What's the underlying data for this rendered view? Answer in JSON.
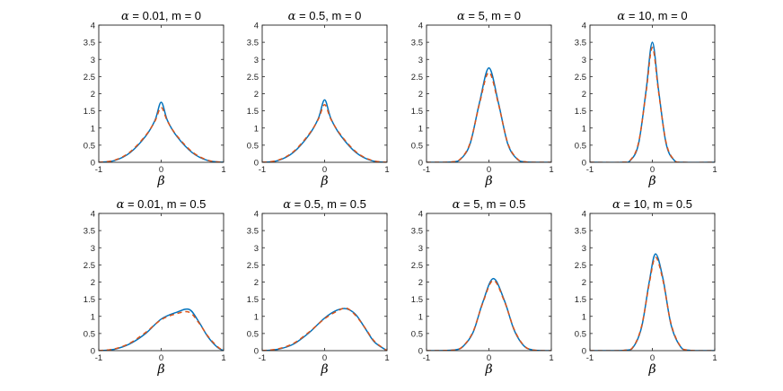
{
  "chart_data": [
    {
      "type": "line",
      "title": "α = 0.01, m = 0",
      "title_greek": "α",
      "title_rest": " = 0.01, m = 0",
      "xlabel": "β",
      "xlim": [
        -1,
        1
      ],
      "ylim": [
        0,
        4
      ],
      "x_ticks": [
        "-1",
        "0",
        "1"
      ],
      "y_ticks": [
        "0",
        "0.5",
        "1",
        "1.5",
        "2",
        "2.5",
        "3",
        "3.5",
        "4"
      ],
      "x": [
        -1,
        -0.75,
        -0.5,
        -0.25,
        -0.1,
        0,
        0.1,
        0.25,
        0.5,
        0.75,
        1
      ],
      "series": [
        {
          "values": [
            0,
            0.05,
            0.28,
            0.76,
            1.22,
            1.75,
            1.22,
            0.76,
            0.28,
            0.05,
            0
          ],
          "color": "#0072BD",
          "style": "solid"
        },
        {
          "values": [
            0,
            0.06,
            0.3,
            0.78,
            1.2,
            1.6,
            1.2,
            0.78,
            0.3,
            0.06,
            0
          ],
          "color": "#D95319",
          "style": "dashed"
        }
      ]
    },
    {
      "type": "line",
      "title": "α = 0.5, m = 0",
      "title_greek": "α",
      "title_rest": " = 0.5, m = 0",
      "xlabel": "β",
      "xlim": [
        -1,
        1
      ],
      "ylim": [
        0,
        4
      ],
      "x_ticks": [
        "-1",
        "0",
        "1"
      ],
      "y_ticks": [
        "0",
        "0.5",
        "1",
        "1.5",
        "2",
        "2.5",
        "3",
        "3.5",
        "4"
      ],
      "x": [
        -1,
        -0.75,
        -0.5,
        -0.25,
        -0.1,
        0,
        0.1,
        0.25,
        0.5,
        0.75,
        1
      ],
      "series": [
        {
          "values": [
            0,
            0.05,
            0.29,
            0.8,
            1.28,
            1.82,
            1.28,
            0.8,
            0.29,
            0.05,
            0
          ],
          "color": "#0072BD",
          "style": "solid"
        },
        {
          "values": [
            0,
            0.06,
            0.31,
            0.82,
            1.26,
            1.68,
            1.26,
            0.82,
            0.31,
            0.06,
            0
          ],
          "color": "#D95319",
          "style": "dashed"
        }
      ]
    },
    {
      "type": "line",
      "title": "α = 5, m = 0",
      "title_greek": "α",
      "title_rest": " = 5, m = 0",
      "xlabel": "β",
      "xlim": [
        -1,
        1
      ],
      "ylim": [
        0,
        4
      ],
      "x_ticks": [
        "-1",
        "0",
        "1"
      ],
      "y_ticks": [
        "0",
        "0.5",
        "1",
        "1.5",
        "2",
        "2.5",
        "3",
        "3.5",
        "4"
      ],
      "x": [
        -1,
        -0.6,
        -0.45,
        -0.3,
        -0.15,
        0,
        0.15,
        0.3,
        0.45,
        0.6,
        1
      ],
      "series": [
        {
          "values": [
            0,
            0.01,
            0.1,
            0.55,
            1.75,
            2.75,
            1.75,
            0.55,
            0.1,
            0.01,
            0
          ],
          "color": "#0072BD",
          "style": "solid"
        },
        {
          "values": [
            0,
            0.01,
            0.11,
            0.57,
            1.72,
            2.62,
            1.72,
            0.57,
            0.11,
            0.01,
            0
          ],
          "color": "#D95319",
          "style": "dashed"
        }
      ]
    },
    {
      "type": "line",
      "title": "α = 10, m = 0",
      "title_greek": "α",
      "title_rest": " = 10, m = 0",
      "xlabel": "β",
      "xlim": [
        -1,
        1
      ],
      "ylim": [
        0,
        4
      ],
      "x_ticks": [
        "-1",
        "0",
        "1"
      ],
      "y_ticks": [
        "0",
        "0.5",
        "1",
        "1.5",
        "2",
        "2.5",
        "3",
        "3.5",
        "4"
      ],
      "x": [
        -1,
        -0.5,
        -0.35,
        -0.22,
        -0.1,
        0,
        0.1,
        0.22,
        0.35,
        0.5,
        1
      ],
      "series": [
        {
          "values": [
            0,
            0,
            0.06,
            0.55,
            2.1,
            3.5,
            2.1,
            0.55,
            0.06,
            0,
            0
          ],
          "color": "#0072BD",
          "style": "solid"
        },
        {
          "values": [
            0,
            0,
            0.07,
            0.58,
            2.05,
            3.35,
            2.05,
            0.58,
            0.07,
            0,
            0
          ],
          "color": "#D95319",
          "style": "dashed"
        }
      ]
    },
    {
      "type": "line",
      "title": "α = 0.01, m = 0.5",
      "title_greek": "α",
      "title_rest": " = 0.01, m = 0.5",
      "xlabel": "β",
      "xlim": [
        -1,
        1
      ],
      "ylim": [
        0,
        4
      ],
      "x_ticks": [
        "-1",
        "0",
        "1"
      ],
      "y_ticks": [
        "0",
        "0.5",
        "1",
        "1.5",
        "2",
        "2.5",
        "3",
        "3.5",
        "4"
      ],
      "x": [
        -1,
        -0.75,
        -0.5,
        -0.25,
        0,
        0.25,
        0.45,
        0.6,
        0.75,
        0.9,
        1
      ],
      "series": [
        {
          "values": [
            0,
            0.04,
            0.2,
            0.5,
            0.92,
            1.12,
            1.2,
            0.85,
            0.4,
            0.1,
            0
          ],
          "color": "#0072BD",
          "style": "solid"
        },
        {
          "values": [
            0,
            0.05,
            0.22,
            0.53,
            0.9,
            1.08,
            1.12,
            0.82,
            0.42,
            0.12,
            0
          ],
          "color": "#D95319",
          "style": "dashed"
        }
      ]
    },
    {
      "type": "line",
      "title": "α = 0.5, m = 0.5",
      "title_greek": "α",
      "title_rest": " = 0.5, m = 0.5",
      "xlabel": "β",
      "xlim": [
        -1,
        1
      ],
      "ylim": [
        0,
        4
      ],
      "x_ticks": [
        "-1",
        "0",
        "1"
      ],
      "y_ticks": [
        "0",
        "0.5",
        "1",
        "1.5",
        "2",
        "2.5",
        "3",
        "3.5",
        "4"
      ],
      "x": [
        -1,
        -0.75,
        -0.5,
        -0.25,
        0,
        0.2,
        0.35,
        0.5,
        0.65,
        0.8,
        1
      ],
      "series": [
        {
          "values": [
            0,
            0.04,
            0.19,
            0.52,
            0.95,
            1.18,
            1.22,
            1.05,
            0.65,
            0.25,
            0
          ],
          "color": "#0072BD",
          "style": "solid"
        },
        {
          "values": [
            0,
            0.05,
            0.21,
            0.54,
            0.93,
            1.15,
            1.24,
            1.02,
            0.66,
            0.27,
            0
          ],
          "color": "#D95319",
          "style": "dashed"
        }
      ]
    },
    {
      "type": "line",
      "title": "α = 5, m = 0.5",
      "title_greek": "α",
      "title_rest": " = 5, m = 0.5",
      "xlabel": "β",
      "xlim": [
        -1,
        1
      ],
      "ylim": [
        0,
        4
      ],
      "x_ticks": [
        "-1",
        "0",
        "1"
      ],
      "y_ticks": [
        "0",
        "0.5",
        "1",
        "1.5",
        "2",
        "2.5",
        "3",
        "3.5",
        "4"
      ],
      "x": [
        -1,
        -0.55,
        -0.4,
        -0.25,
        -0.1,
        0.07,
        0.25,
        0.4,
        0.55,
        0.7,
        1
      ],
      "series": [
        {
          "values": [
            0,
            0.02,
            0.15,
            0.55,
            1.4,
            2.1,
            1.45,
            0.62,
            0.16,
            0.02,
            0
          ],
          "color": "#0072BD",
          "style": "solid"
        },
        {
          "values": [
            0,
            0.02,
            0.16,
            0.57,
            1.38,
            2.05,
            1.43,
            0.64,
            0.17,
            0.02,
            0
          ],
          "color": "#D95319",
          "style": "dashed"
        }
      ]
    },
    {
      "type": "line",
      "title": "α = 10, m = 0.5",
      "title_greek": "α",
      "title_rest": " = 10, m = 0.5",
      "xlabel": "β",
      "xlim": [
        -1,
        1
      ],
      "ylim": [
        0,
        4
      ],
      "x_ticks": [
        "-1",
        "0",
        "1"
      ],
      "y_ticks": [
        "0",
        "0.5",
        "1",
        "1.5",
        "2",
        "2.5",
        "3",
        "3.5",
        "4"
      ],
      "x": [
        -1,
        -0.45,
        -0.3,
        -0.17,
        -0.05,
        0.05,
        0.17,
        0.3,
        0.45,
        0.6,
        1
      ],
      "series": [
        {
          "values": [
            0,
            0.01,
            0.12,
            0.7,
            2.0,
            2.82,
            2.1,
            0.75,
            0.12,
            0.01,
            0
          ],
          "color": "#0072BD",
          "style": "solid"
        },
        {
          "values": [
            0,
            0.01,
            0.13,
            0.73,
            1.95,
            2.72,
            2.05,
            0.78,
            0.13,
            0.01,
            0
          ],
          "color": "#D95319",
          "style": "dashed"
        }
      ]
    }
  ]
}
